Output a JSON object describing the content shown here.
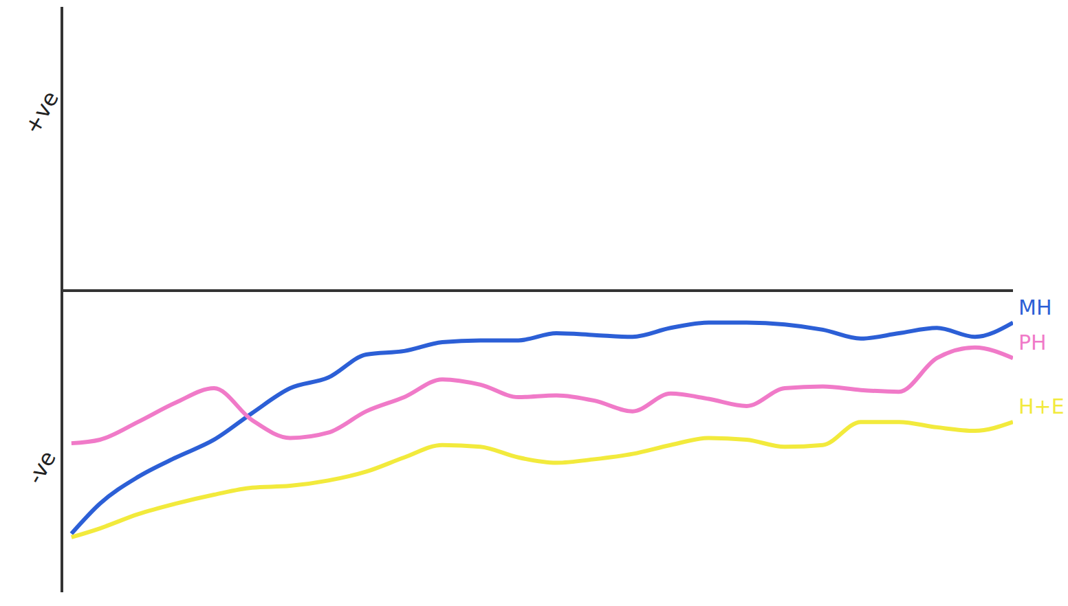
{
  "chart_data": {
    "type": "line",
    "x": [
      1,
      4,
      8,
      12,
      16,
      20,
      24,
      28,
      32,
      36,
      40,
      44,
      48,
      52,
      56,
      60,
      64,
      68,
      72,
      76,
      80,
      84,
      88,
      92,
      96,
      100
    ],
    "series": [
      {
        "name": "MH",
        "color": "#2c5fd6",
        "values": [
          -1.37,
          -1.2,
          -1.05,
          -0.94,
          -0.84,
          -0.69,
          -0.55,
          -0.49,
          -0.36,
          -0.34,
          -0.29,
          -0.28,
          -0.28,
          -0.24,
          -0.25,
          -0.26,
          -0.21,
          -0.18,
          -0.18,
          -0.19,
          -0.22,
          -0.27,
          -0.24,
          -0.21,
          -0.26,
          -0.18
        ]
      },
      {
        "name": "PH",
        "color": "#f07ac8",
        "values": [
          -0.86,
          -0.84,
          -0.74,
          -0.63,
          -0.55,
          -0.73,
          -0.83,
          -0.8,
          -0.68,
          -0.6,
          -0.5,
          -0.53,
          -0.6,
          -0.59,
          -0.62,
          -0.68,
          -0.58,
          -0.61,
          -0.65,
          -0.55,
          -0.54,
          -0.56,
          -0.57,
          -0.38,
          -0.32,
          -0.38
        ]
      },
      {
        "name": "H+E",
        "color": "#f2ea3c",
        "values": [
          -1.39,
          -1.34,
          -1.26,
          -1.2,
          -1.15,
          -1.11,
          -1.1,
          -1.07,
          -1.02,
          -0.94,
          -0.87,
          -0.88,
          -0.94,
          -0.97,
          -0.95,
          -0.92,
          -0.87,
          -0.83,
          -0.84,
          -0.88,
          -0.87,
          -0.74,
          -0.74,
          -0.77,
          -0.79,
          -0.74
        ]
      }
    ],
    "xlim": [
      0,
      100
    ],
    "ylim": [
      -1.7,
      1.6
    ],
    "yticks": [
      {
        "value": 1,
        "label": "+ve"
      },
      {
        "value": -1,
        "label": "-ve"
      }
    ],
    "baseline": 0,
    "tick_labels": "y"
  }
}
